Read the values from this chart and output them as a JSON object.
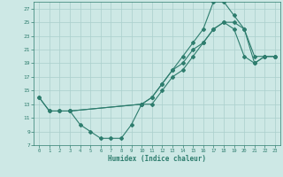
{
  "bg_color": "#cde8e5",
  "line_color": "#2e7d6e",
  "grid_color": "#aacfcc",
  "xlabel": "Humidex (Indice chaleur)",
  "xlim": [
    -0.5,
    23.5
  ],
  "ylim": [
    7,
    28
  ],
  "yticks": [
    7,
    9,
    11,
    13,
    15,
    17,
    19,
    21,
    23,
    25,
    27
  ],
  "xticks": [
    0,
    1,
    2,
    3,
    4,
    5,
    6,
    7,
    8,
    9,
    10,
    11,
    12,
    13,
    14,
    15,
    16,
    17,
    18,
    19,
    20,
    21,
    22,
    23
  ],
  "line1_x": [
    0,
    1,
    2,
    3,
    10,
    11,
    12,
    13,
    14,
    15,
    16,
    17,
    18,
    19,
    20,
    21,
    22,
    23
  ],
  "line1_y": [
    14,
    12,
    12,
    12,
    13,
    14,
    16,
    18,
    20,
    22,
    24,
    28,
    28,
    26,
    24,
    20,
    20,
    20
  ],
  "line2_x": [
    0,
    1,
    2,
    3,
    10,
    11,
    12,
    13,
    14,
    15,
    16,
    17,
    18,
    19,
    20,
    21,
    22,
    23
  ],
  "line2_y": [
    14,
    12,
    12,
    12,
    13,
    13,
    15,
    17,
    18,
    20,
    22,
    24,
    25,
    24,
    20,
    19,
    20,
    20
  ],
  "line3_x": [
    3,
    4,
    5,
    6,
    7,
    8,
    9,
    10,
    11,
    12,
    13,
    14,
    15,
    16,
    17,
    18,
    19,
    20,
    21,
    22,
    23
  ],
  "line3_y": [
    12,
    10,
    9,
    8,
    8,
    8,
    10,
    13,
    14,
    16,
    18,
    19,
    21,
    22,
    24,
    25,
    25,
    24,
    19,
    20,
    20
  ]
}
